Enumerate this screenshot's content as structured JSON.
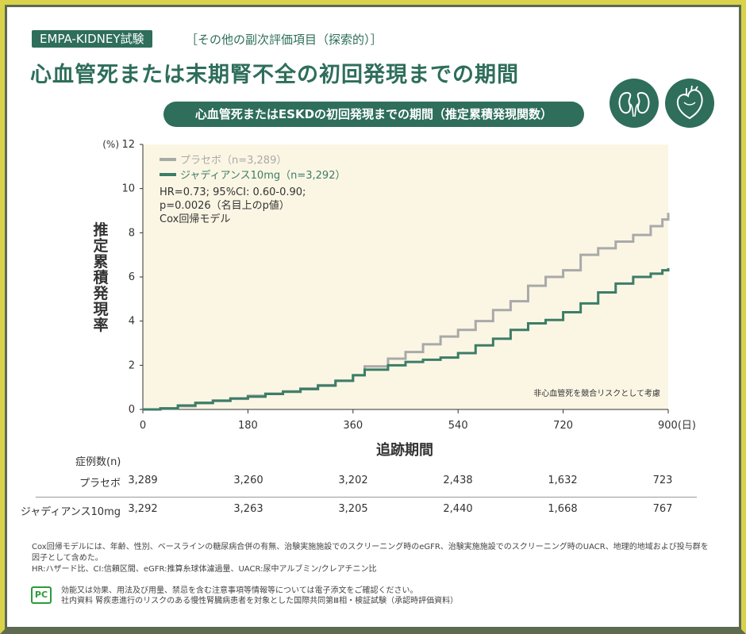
{
  "badge": "EMPA-KIDNEY試験",
  "subtag": "［その他の副次評価項目（探索的）］",
  "title": "心血管死または末期腎不全の初回発現までの期間",
  "pill": "心血管死またはESKDの初回発現までの期間（推定累積発現関数）",
  "icons": [
    "kidney-icon",
    "heart-icon"
  ],
  "colors": {
    "brand": "#2e6e5a",
    "placebo": "#a9a9a9",
    "jardiance": "#3c7d67",
    "plot_bg": "#fbf6e4",
    "border_yellow": "#d9d24a"
  },
  "chart_data": {
    "type": "line",
    "y_unit": "(%)",
    "x_unit": "(日)",
    "xlabel": "追跡期間",
    "ylabel": "推定累積発現率",
    "xlim": [
      0,
      900
    ],
    "ylim": [
      0,
      12
    ],
    "x_ticks": [
      0,
      180,
      360,
      540,
      720,
      900
    ],
    "y_ticks": [
      0,
      2,
      4,
      6,
      8,
      10,
      12
    ],
    "x_tick_labels": [
      "0",
      "180",
      "360",
      "540",
      "720",
      "900(日)"
    ],
    "y_tick_labels": [
      "0",
      "2",
      "4",
      "6",
      "8",
      "10",
      "12"
    ],
    "legend_position": "top-left",
    "series": [
      {
        "name": "プラセボ（n=3,289）",
        "color": "#a9a9a9",
        "x": [
          0,
          30,
          60,
          90,
          120,
          150,
          180,
          210,
          240,
          270,
          300,
          330,
          360,
          380,
          420,
          450,
          480,
          510,
          540,
          570,
          600,
          630,
          660,
          690,
          720,
          750,
          780,
          810,
          840,
          870,
          890,
          900
        ],
        "y": [
          0,
          0.05,
          0.15,
          0.28,
          0.38,
          0.48,
          0.62,
          0.72,
          0.82,
          0.95,
          1.1,
          1.3,
          1.55,
          1.95,
          2.3,
          2.6,
          2.95,
          3.3,
          3.6,
          4.0,
          4.5,
          4.9,
          5.6,
          6.0,
          6.3,
          7.0,
          7.3,
          7.6,
          7.9,
          8.3,
          8.6,
          8.9
        ]
      },
      {
        "name": "ジャディアンス10mg（n=3,292）",
        "color": "#3c7d67",
        "x": [
          0,
          30,
          60,
          90,
          120,
          150,
          180,
          210,
          240,
          270,
          300,
          330,
          360,
          380,
          420,
          450,
          480,
          510,
          540,
          570,
          600,
          630,
          660,
          690,
          720,
          750,
          780,
          810,
          840,
          870,
          890,
          900
        ],
        "y": [
          0,
          0.05,
          0.18,
          0.3,
          0.4,
          0.5,
          0.58,
          0.7,
          0.8,
          0.92,
          1.08,
          1.3,
          1.55,
          1.8,
          2.0,
          2.15,
          2.25,
          2.35,
          2.55,
          2.9,
          3.2,
          3.6,
          3.9,
          4.05,
          4.4,
          4.8,
          5.3,
          5.7,
          6.0,
          6.15,
          6.3,
          6.4
        ]
      }
    ],
    "annotation_stats": [
      "HR=0.73; 95%CI: 0.60-0.90;",
      "p=0.0026（名目上のp値）",
      "Cox回帰モデル"
    ],
    "annotation_note": "非心血管死を競合リスクとして考慮"
  },
  "risk_table": {
    "title": "症例数(n)",
    "rows": [
      {
        "label": "プラセボ",
        "values": [
          "3,289",
          "3,260",
          "3,202",
          "2,438",
          "1,632",
          "723"
        ]
      },
      {
        "label": "ジャディアンス10mg",
        "values": [
          "3,292",
          "3,263",
          "3,205",
          "2,440",
          "1,668",
          "767"
        ]
      }
    ]
  },
  "notes": {
    "line1": "Cox回帰モデルには、年齢、性別、ベースラインの糖尿病合併の有無、治験実施施設でのスクリーニング時のeGFR、治験実施施設でのスクリーニング時のUACR、地理的地域および投与群を因子として含めた。",
    "line2": "HR:ハザード比、CI:信頼区間、eGFR:推算糸球体濾過量、UACR:尿中アルブミン/クレアチニン比"
  },
  "footer": {
    "pc_logo": "PC",
    "line1": "効能又は効果、用法及び用量、禁忌を含む注意事項等情報等については電子添文をご確認ください。",
    "line2": "社内資料 腎疾患進行のリスクのある慢性腎臓病患者を対象とした国際共同第Ⅲ相・検証試験（承認時評価資料）"
  }
}
